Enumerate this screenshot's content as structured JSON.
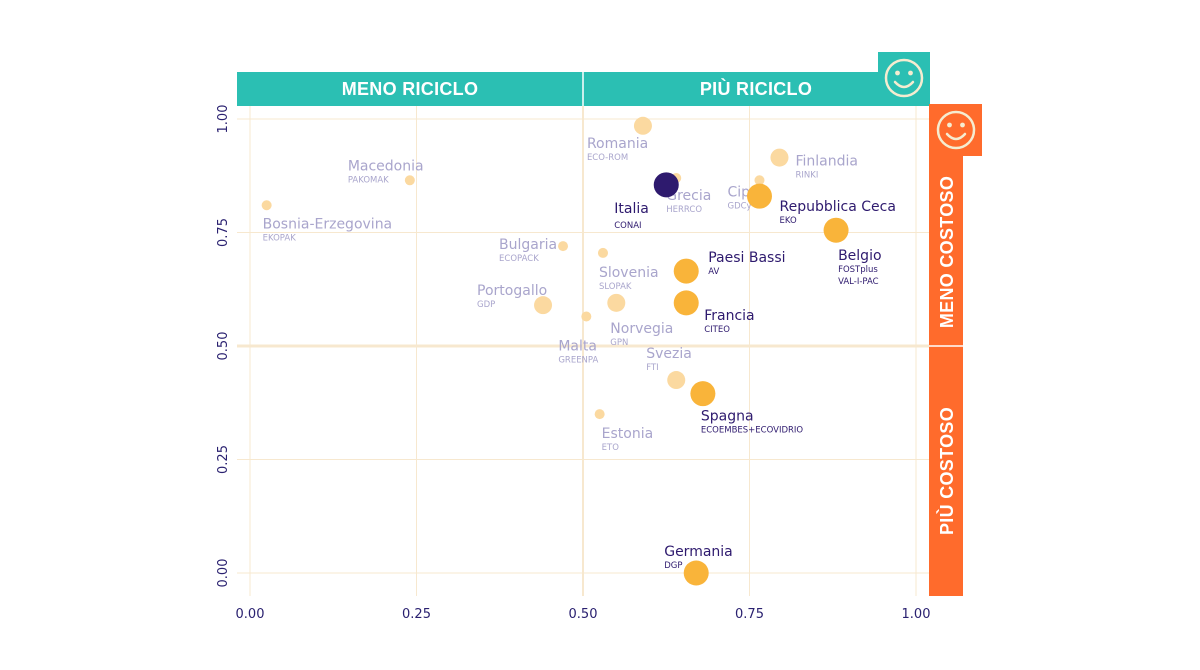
{
  "chart_data": {
    "type": "scatter",
    "xlim": [
      0,
      1
    ],
    "ylim": [
      0,
      1
    ],
    "x_ticks": [
      "0.00",
      "0.25",
      "0.50",
      "0.75",
      "1.00"
    ],
    "y_ticks": [
      "0.00",
      "0.25",
      "0.50",
      "0.75",
      "1.00"
    ],
    "grid": true,
    "bands": {
      "top_left": "MENO RICICLO",
      "top_right": "PIÙ RICICLO",
      "right_top": "MENO COSTOSO",
      "right_bottom": "PIÙ COSTOSO"
    },
    "colors": {
      "teal": "#2bbfb3",
      "orange": "#ff6b2c",
      "highlight": "#2e1a6e",
      "strong_point": "#f9b43a",
      "faded_point": "#fbd9a0",
      "faded_text": "#a9a5cc",
      "grid": "#f7e8cf",
      "smiley": "#f5ecd0"
    },
    "points": [
      {
        "name": "Italia",
        "org": "CONAI",
        "x": 0.625,
        "y": 0.855,
        "size": "large",
        "style": "highlight"
      },
      {
        "name": "Romania",
        "org": "ECO-ROM",
        "x": 0.59,
        "y": 0.985,
        "size": "medium",
        "style": "faded"
      },
      {
        "name": "Grecia",
        "org": "HERRCO",
        "x": 0.64,
        "y": 0.87,
        "size": "small",
        "style": "faded"
      },
      {
        "name": "Cipro",
        "org": "GDCy",
        "x": 0.765,
        "y": 0.865,
        "size": "small",
        "style": "faded"
      },
      {
        "name": "Finlandia",
        "org": "RINKI",
        "x": 0.795,
        "y": 0.915,
        "size": "medium",
        "style": "faded"
      },
      {
        "name": "Macedonia",
        "org": "PAKOMAK",
        "x": 0.24,
        "y": 0.865,
        "size": "small",
        "style": "faded"
      },
      {
        "name": "Bosnia-Erzegovina",
        "org": "EKOPAK",
        "x": 0.025,
        "y": 0.81,
        "size": "small",
        "style": "faded"
      },
      {
        "name": "Bulgaria",
        "org": "ECOPACK",
        "x": 0.47,
        "y": 0.72,
        "size": "small",
        "style": "faded"
      },
      {
        "name": "Slovenia",
        "org": "SLOPAK",
        "x": 0.53,
        "y": 0.705,
        "size": "small",
        "style": "faded"
      },
      {
        "name": "Portogallo",
        "org": "GDP",
        "x": 0.44,
        "y": 0.59,
        "size": "medium",
        "style": "faded"
      },
      {
        "name": "Malta",
        "org": "GREENPA",
        "x": 0.505,
        "y": 0.565,
        "size": "small",
        "style": "faded"
      },
      {
        "name": "Norvegia",
        "org": "GPN",
        "x": 0.55,
        "y": 0.595,
        "size": "medium",
        "style": "faded"
      },
      {
        "name": "Repubblica Ceca",
        "org": "EKO",
        "x": 0.765,
        "y": 0.83,
        "size": "large",
        "style": "strong"
      },
      {
        "name": "Belgio",
        "org": "FOSTplus\nVAL-I-PAC",
        "x": 0.88,
        "y": 0.755,
        "size": "large",
        "style": "strong"
      },
      {
        "name": "Paesi Bassi",
        "org": "AV",
        "x": 0.655,
        "y": 0.665,
        "size": "large",
        "style": "strong"
      },
      {
        "name": "Francia",
        "org": "CITEO",
        "x": 0.655,
        "y": 0.595,
        "size": "large",
        "style": "strong"
      },
      {
        "name": "Svezia",
        "org": "FTI",
        "x": 0.64,
        "y": 0.425,
        "size": "medium",
        "style": "faded"
      },
      {
        "name": "Spagna",
        "org": "ECOEMBES+ECOVIDRIO",
        "x": 0.68,
        "y": 0.395,
        "size": "large",
        "style": "strong"
      },
      {
        "name": "Estonia",
        "org": "ETO",
        "x": 0.525,
        "y": 0.35,
        "size": "small",
        "style": "faded"
      },
      {
        "name": "Germania",
        "org": "DGP",
        "x": 0.67,
        "y": 0.0,
        "size": "large",
        "style": "strong"
      }
    ]
  }
}
